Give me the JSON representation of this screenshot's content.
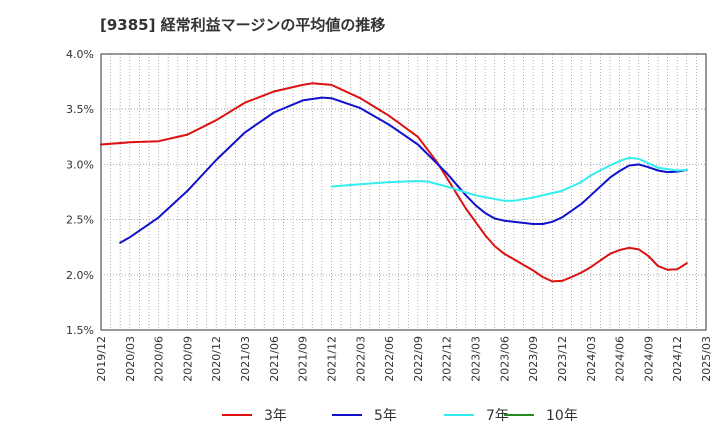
{
  "chart_data": {
    "type": "line",
    "title": "[9385]  経常利益マージンの平均値の推移",
    "xlabel": "",
    "ylabel": "",
    "ylim": [
      1.5,
      4.0
    ],
    "y_ticks": [
      "1.5%",
      "2.0%",
      "2.5%",
      "3.0%",
      "3.5%",
      "4.0%"
    ],
    "x_ticks": [
      "2019/12",
      "2020/03",
      "2020/06",
      "2020/09",
      "2020/12",
      "2021/03",
      "2021/06",
      "2021/09",
      "2021/12",
      "2022/03",
      "2022/06",
      "2022/09",
      "2022/12",
      "2023/03",
      "2023/06",
      "2023/09",
      "2023/12",
      "2024/03",
      "2024/06",
      "2024/09",
      "2024/12",
      "2025/03"
    ],
    "grid": true,
    "legend_position": "bottom",
    "series": [
      {
        "name": "3年",
        "color": "#dd1111",
        "points": [
          [
            "2019/12",
            3.18
          ],
          [
            "2020/03",
            3.2
          ],
          [
            "2020/06",
            3.21
          ],
          [
            "2020/09",
            3.27
          ],
          [
            "2020/12",
            3.4
          ],
          [
            "2021/03",
            3.56
          ],
          [
            "2021/06",
            3.66
          ],
          [
            "2021/09",
            3.72
          ],
          [
            "2021/10",
            3.735
          ],
          [
            "2021/12",
            3.72
          ],
          [
            "2022/03",
            3.6
          ],
          [
            "2022/06",
            3.44
          ],
          [
            "2022/09",
            3.25
          ],
          [
            "2022/11",
            3.02
          ],
          [
            "2022/12",
            2.88
          ],
          [
            "2023/02",
            2.6
          ],
          [
            "2023/03",
            2.48
          ],
          [
            "2023/04",
            2.36
          ],
          [
            "2023/05",
            2.26
          ],
          [
            "2023/06",
            2.19
          ],
          [
            "2023/07",
            2.14
          ],
          [
            "2023/08",
            2.09
          ],
          [
            "2023/09",
            2.04
          ],
          [
            "2023/10",
            1.98
          ],
          [
            "2023/11",
            1.94
          ],
          [
            "2023/12",
            1.945
          ],
          [
            "2024/01",
            1.98
          ],
          [
            "2024/02",
            2.02
          ],
          [
            "2024/03",
            2.07
          ],
          [
            "2024/04",
            2.13
          ],
          [
            "2024/05",
            2.19
          ],
          [
            "2024/06",
            2.225
          ],
          [
            "2024/07",
            2.245
          ],
          [
            "2024/08",
            2.23
          ],
          [
            "2024/09",
            2.17
          ],
          [
            "2024/10",
            2.08
          ],
          [
            "2024/11",
            2.045
          ],
          [
            "2024/12",
            2.05
          ],
          [
            "2025/01",
            2.105
          ]
        ]
      },
      {
        "name": "5年",
        "color": "#1111cc",
        "points": [
          [
            "2020/02",
            2.29
          ],
          [
            "2020/03",
            2.34
          ],
          [
            "2020/06",
            2.52
          ],
          [
            "2020/09",
            2.76
          ],
          [
            "2020/12",
            3.04
          ],
          [
            "2021/03",
            3.29
          ],
          [
            "2021/06",
            3.47
          ],
          [
            "2021/09",
            3.58
          ],
          [
            "2021/11",
            3.605
          ],
          [
            "2021/12",
            3.6
          ],
          [
            "2022/03",
            3.51
          ],
          [
            "2022/06",
            3.36
          ],
          [
            "2022/09",
            3.18
          ],
          [
            "2022/12",
            2.92
          ],
          [
            "2023/02",
            2.72
          ],
          [
            "2023/03",
            2.63
          ],
          [
            "2023/04",
            2.56
          ],
          [
            "2023/05",
            2.51
          ],
          [
            "2023/06",
            2.49
          ],
          [
            "2023/09",
            2.46
          ],
          [
            "2023/10",
            2.46
          ],
          [
            "2023/11",
            2.48
          ],
          [
            "2023/12",
            2.52
          ],
          [
            "2024/02",
            2.64
          ],
          [
            "2024/03",
            2.72
          ],
          [
            "2024/05",
            2.88
          ],
          [
            "2024/06",
            2.94
          ],
          [
            "2024/07",
            2.99
          ],
          [
            "2024/08",
            3.0
          ],
          [
            "2024/09",
            2.975
          ],
          [
            "2024/10",
            2.945
          ],
          [
            "2024/11",
            2.93
          ],
          [
            "2024/12",
            2.935
          ],
          [
            "2025/01",
            2.95
          ]
        ]
      },
      {
        "name": "7年",
        "color": "#33eeee",
        "points": [
          [
            "2021/12",
            2.8
          ],
          [
            "2022/03",
            2.82
          ],
          [
            "2022/06",
            2.84
          ],
          [
            "2022/09",
            2.85
          ],
          [
            "2022/10",
            2.845
          ],
          [
            "2022/12",
            2.8
          ],
          [
            "2023/03",
            2.72
          ],
          [
            "2023/06",
            2.67
          ],
          [
            "2023/07",
            2.67
          ],
          [
            "2023/09",
            2.7
          ],
          [
            "2023/12",
            2.76
          ],
          [
            "2024/02",
            2.84
          ],
          [
            "2024/03",
            2.9
          ],
          [
            "2024/05",
            2.99
          ],
          [
            "2024/06",
            3.03
          ],
          [
            "2024/07",
            3.06
          ],
          [
            "2024/08",
            3.05
          ],
          [
            "2024/09",
            3.01
          ],
          [
            "2024/10",
            2.97
          ],
          [
            "2024/12",
            2.945
          ],
          [
            "2025/01",
            2.95
          ]
        ]
      },
      {
        "name": "10年",
        "color": "#228b22",
        "points": []
      }
    ]
  }
}
